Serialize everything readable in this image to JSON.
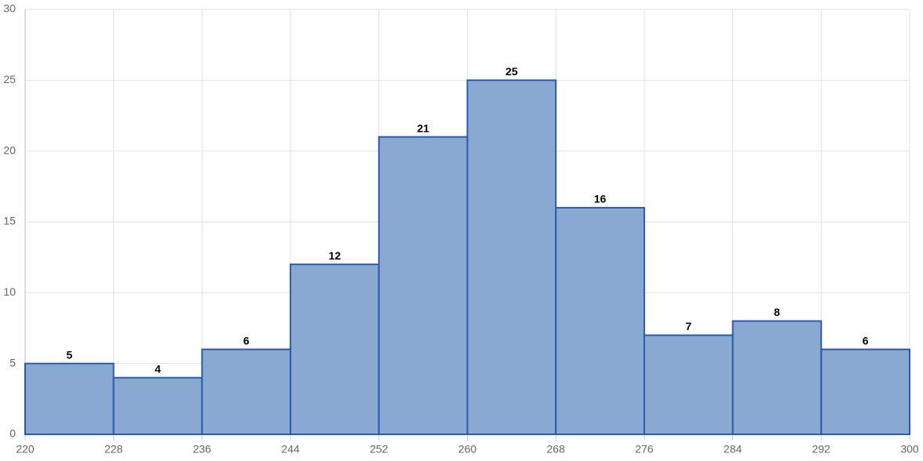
{
  "chart_data": {
    "type": "histogram",
    "bins": [
      220,
      228,
      236,
      244,
      252,
      260,
      268,
      276,
      284,
      292,
      300
    ],
    "values": [
      5,
      4,
      6,
      12,
      21,
      25,
      16,
      7,
      8,
      6
    ],
    "color": "#89a8d2",
    "edge_color": "#2a5caa",
    "xlim": [
      220,
      300
    ],
    "xticks": [
      220,
      228,
      236,
      244,
      252,
      260,
      268,
      276,
      284,
      292,
      300
    ],
    "ylim": [
      0,
      30
    ],
    "yticks": [
      0,
      5,
      10,
      15,
      20,
      25,
      30
    ],
    "grid": true
  }
}
